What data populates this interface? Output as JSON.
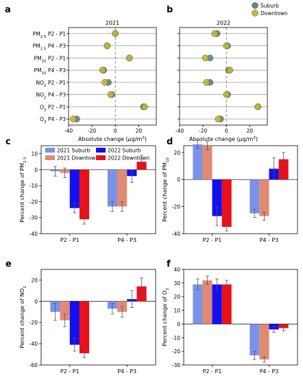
{
  "colors": {
    "suburb_dot": "#5e8c7a",
    "downtown_dot": "#c8b631",
    "suburb_2021": "#7b93e6",
    "downtown_2021": "#e08a74",
    "suburb_2022": "#1010f0",
    "downtown_2022": "#e8111a",
    "grid": "#999999",
    "zero_line": "#888888"
  },
  "chart_data": [
    {
      "panel": "a",
      "type": "scatter",
      "title": "2021",
      "xlabel": "Absolute change (μg/m³)",
      "xlim": [
        -40,
        35
      ],
      "xticks": [
        -40,
        -20,
        0,
        20
      ],
      "legend": {
        "position": "top-right",
        "entries": [
          "Suburb",
          "Downtown"
        ]
      },
      "categories": [
        {
          "base": "PM",
          "sub": "2.5",
          "rest": " P2 - P1"
        },
        {
          "base": "PM",
          "sub": "2.5",
          "rest": " P4 - P3"
        },
        {
          "base": "PM",
          "sub": "10",
          "rest": " P2 - P1"
        },
        {
          "base": "PM",
          "sub": "10",
          "rest": " P4 - P3"
        },
        {
          "base": "NO",
          "sub": "2",
          "rest": " P2 - P1"
        },
        {
          "base": "NO",
          "sub": "2",
          "rest": " P4 - P3"
        },
        {
          "base": "O",
          "sub": "3",
          "rest": " P2 - P1"
        },
        {
          "base": "O",
          "sub": "3",
          "rest": " P4 - P3"
        }
      ],
      "series": [
        {
          "name": "Suburb",
          "values": [
            0,
            -7,
            12,
            -10,
            -6,
            -3,
            24,
            -33
          ],
          "errors": [
            1,
            1,
            1,
            1.5,
            2,
            1,
            3,
            2
          ]
        },
        {
          "name": "Downtown",
          "values": [
            0,
            -7,
            12,
            -11,
            -9,
            -4,
            25,
            -36
          ],
          "errors": [
            1,
            1,
            1,
            1.5,
            2,
            1,
            3,
            2
          ]
        }
      ]
    },
    {
      "panel": "b",
      "type": "scatter",
      "title": "2022",
      "xlabel": "Absolute change (μg/m³)",
      "xlim": [
        -40,
        35
      ],
      "xticks": [
        -40,
        -20,
        0,
        20
      ],
      "series": [
        {
          "name": "Suburb",
          "values": [
            -8,
            1,
            -14,
            2,
            -14,
            1,
            27,
            -5
          ],
          "errors": [
            2,
            2,
            2,
            3,
            3,
            2,
            3,
            2
          ]
        },
        {
          "name": "Downtown",
          "values": [
            -10,
            0,
            -18,
            3,
            -17,
            0,
            27,
            -7
          ],
          "errors": [
            2,
            2,
            2,
            3,
            3,
            2,
            3,
            2
          ]
        }
      ]
    },
    {
      "panel": "c",
      "type": "bar",
      "ylabel": "Percent change of PM2.5",
      "ylabel_parts": {
        "base": "Percent change of PM",
        "sub": "2.5"
      },
      "categories": [
        "P2 - P1",
        "P4 - P3"
      ],
      "ylim": [
        -40,
        15
      ],
      "yticks": [
        -40,
        -30,
        -20,
        -10,
        0,
        10
      ],
      "legend": {
        "position": "top",
        "entries": [
          "2021 Suburb",
          "2021 Downtown",
          "2022 Suburb",
          "2022 Downtown"
        ]
      },
      "series": [
        {
          "name": "2021 Suburb",
          "values": [
            -1,
            -23
          ],
          "errors": [
            3,
            3
          ]
        },
        {
          "name": "2021 Downtown",
          "values": [
            -2,
            -23
          ],
          "errors": [
            3,
            3
          ]
        },
        {
          "name": "2022 Suburb",
          "values": [
            -24,
            -4
          ],
          "errors": [
            3,
            4
          ]
        },
        {
          "name": "2022 Downtown",
          "values": [
            -31,
            5
          ],
          "errors": [
            3,
            4
          ]
        }
      ]
    },
    {
      "panel": "d",
      "type": "bar",
      "ylabel": "Percent change of PM10",
      "ylabel_parts": {
        "base": "Percent change of PM",
        "sub": "10"
      },
      "categories": [
        "P2 - P1",
        "P4 - P3"
      ],
      "ylim": [
        -40,
        25
      ],
      "yticks": [
        -40,
        -20,
        0,
        20
      ],
      "series": [
        {
          "name": "2021 Suburb",
          "values": [
            26,
            -25
          ],
          "errors": [
            3,
            3
          ]
        },
        {
          "name": "2021 Downtown",
          "values": [
            25,
            -27
          ],
          "errors": [
            3,
            3
          ]
        },
        {
          "name": "2022 Suburb",
          "values": [
            -27,
            8
          ],
          "errors": [
            7,
            8
          ]
        },
        {
          "name": "2022 Downtown",
          "values": [
            -35,
            15
          ],
          "errors": [
            3,
            5
          ]
        }
      ]
    },
    {
      "panel": "e",
      "type": "bar",
      "ylabel": "Percent change of NO2",
      "ylabel_parts": {
        "base": "Percent change of NO",
        "sub": "2"
      },
      "categories": [
        "P2 - P1",
        "P4 - P3"
      ],
      "ylim": [
        -60,
        30
      ],
      "yticks": [
        -60,
        -40,
        -20,
        0,
        20
      ],
      "series": [
        {
          "name": "2021 Suburb",
          "values": [
            -10,
            -7
          ],
          "errors": [
            8,
            5
          ]
        },
        {
          "name": "2021 Downtown",
          "values": [
            -18,
            -10
          ],
          "errors": [
            6,
            5
          ]
        },
        {
          "name": "2022 Suburb",
          "values": [
            -41,
            2
          ],
          "errors": [
            6,
            8
          ]
        },
        {
          "name": "2022 Downtown",
          "values": [
            -49,
            14
          ],
          "errors": [
            4,
            8
          ]
        }
      ]
    },
    {
      "panel": "f",
      "type": "bar",
      "ylabel": "Percent change of O3",
      "ylabel_parts": {
        "base": "Percent change of O",
        "sub": "3"
      },
      "categories": [
        "P2 - P1",
        "P4 - P3"
      ],
      "ylim": [
        -30,
        40
      ],
      "yticks": [
        -30,
        -20,
        -10,
        0,
        10,
        20,
        30,
        40
      ],
      "series": [
        {
          "name": "2021 Suburb",
          "values": [
            29,
            -23
          ],
          "errors": [
            4,
            3
          ]
        },
        {
          "name": "2021 Downtown",
          "values": [
            32,
            -26
          ],
          "errors": [
            3,
            2
          ]
        },
        {
          "name": "2022 Suburb",
          "values": [
            29,
            -4
          ],
          "errors": [
            4,
            2
          ]
        },
        {
          "name": "2022 Downtown",
          "values": [
            29,
            -3
          ],
          "errors": [
            3,
            2
          ]
        }
      ]
    }
  ]
}
